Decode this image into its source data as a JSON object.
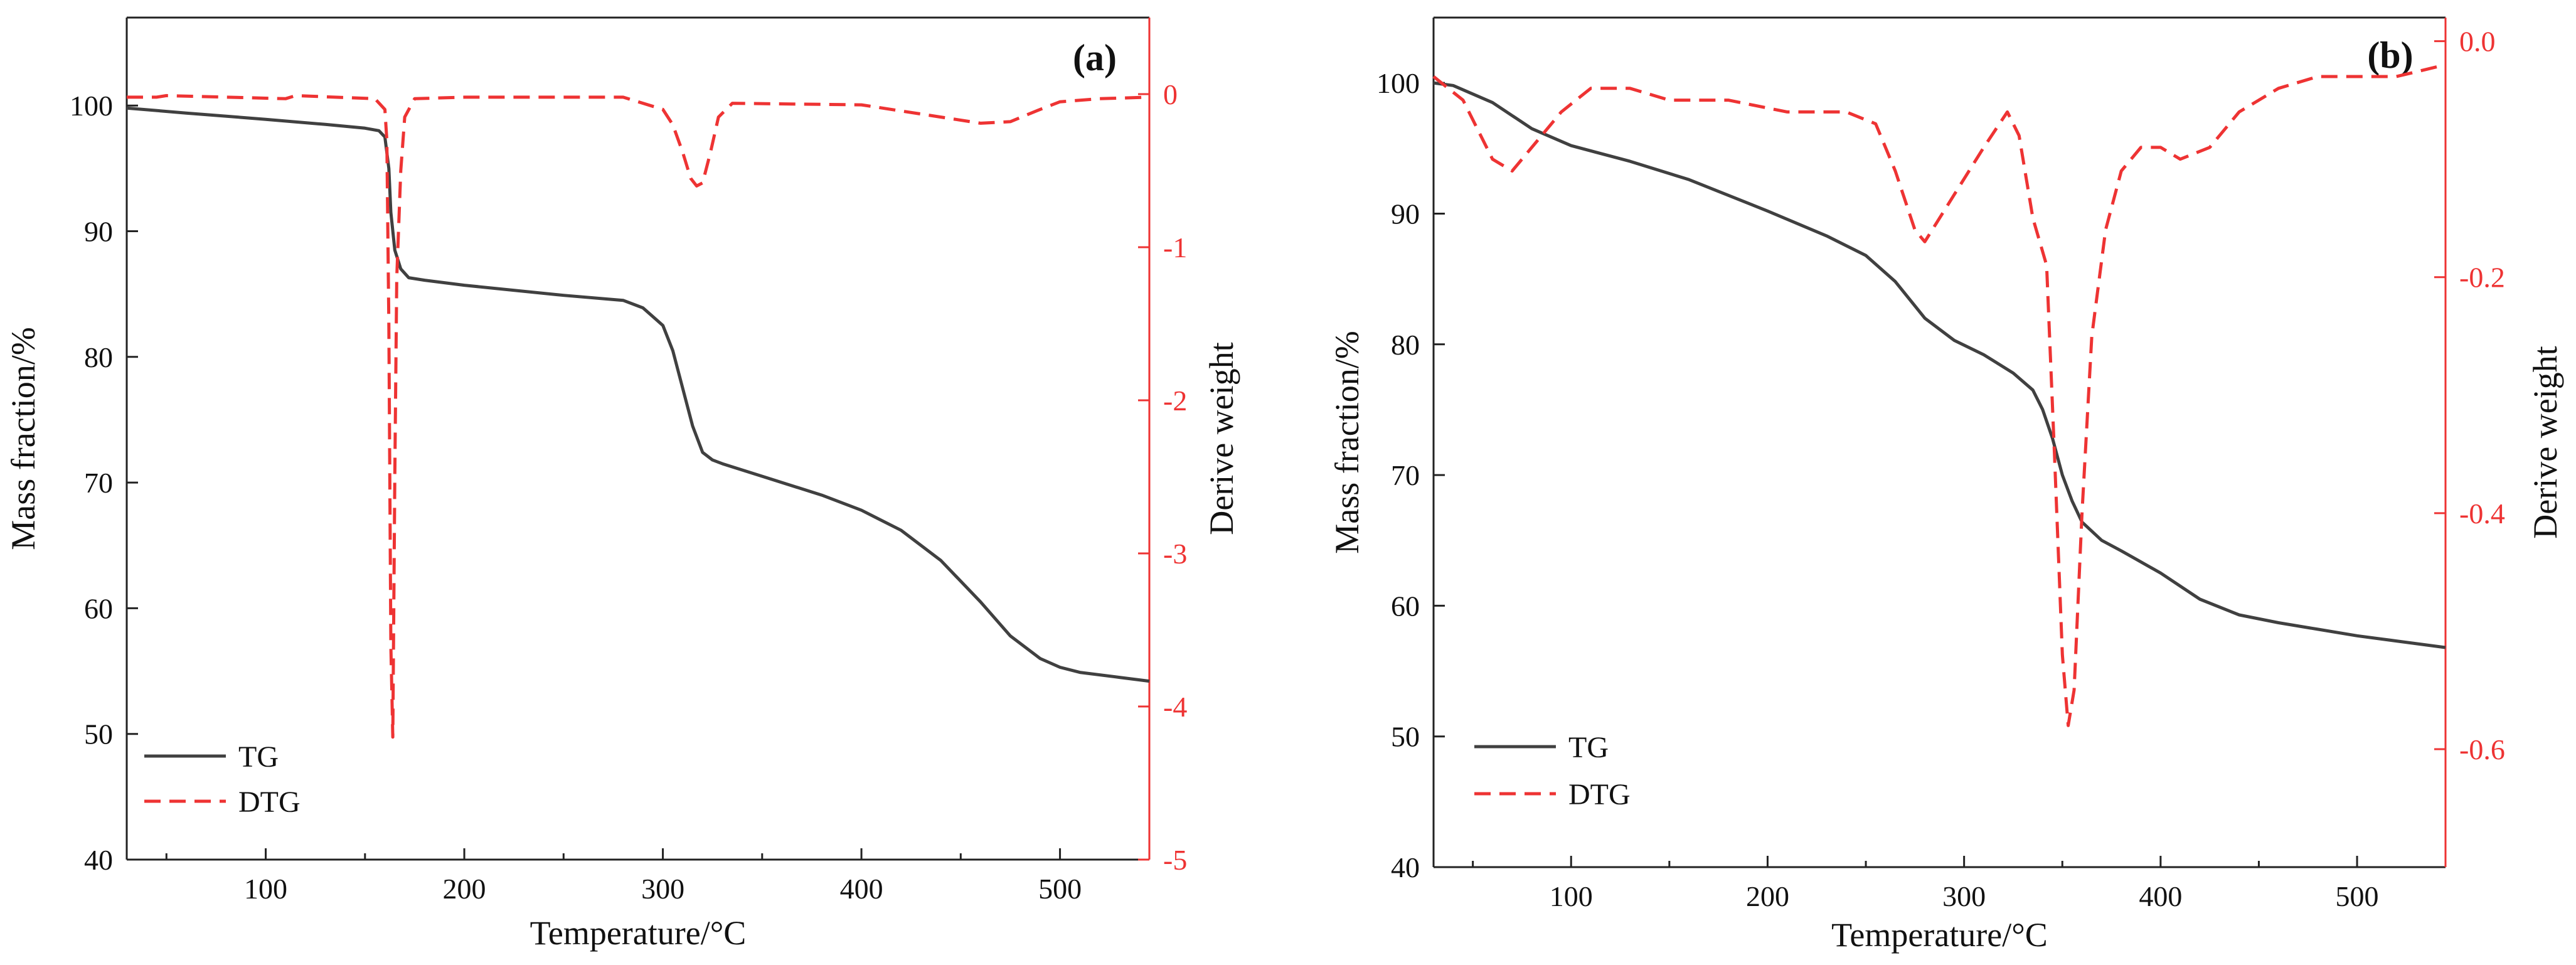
{
  "colors": {
    "tg": "#404040",
    "dtg": "#ee3333",
    "axis": "#222222"
  },
  "chart_data": [
    {
      "type": "line",
      "panel_label": "(a)",
      "xlabel": "Temperature/°C",
      "ylabel_left": "Mass fraction/%",
      "ylabel_right": "Derive weight",
      "xlim": [
        30,
        545
      ],
      "ylim_left": [
        40,
        107
      ],
      "ylim_right": [
        -5,
        0.5
      ],
      "xticks": [
        100,
        200,
        300,
        400,
        500
      ],
      "xtick_labels": [
        "100",
        "200",
        "300",
        "400",
        "500"
      ],
      "yticks_left": [
        40,
        50,
        60,
        70,
        80,
        90,
        100
      ],
      "ytick_labels_left": [
        "40",
        "50",
        "60",
        "70",
        "80",
        "90",
        "100"
      ],
      "yticks_right": [
        -5,
        -4,
        -3,
        -2,
        -1,
        0
      ],
      "ytick_labels_right": [
        "-5",
        "-4",
        "-3",
        "-2",
        "-1",
        "0"
      ],
      "legend": {
        "placement": "bottom-left",
        "entries": [
          "TG",
          "DTG"
        ]
      },
      "series": [
        {
          "name": "TG",
          "axis": "left",
          "style": "solid",
          "x": [
            30,
            60,
            100,
            130,
            150,
            157,
            160,
            162,
            163,
            165,
            168,
            172,
            180,
            200,
            250,
            280,
            290,
            300,
            305,
            310,
            315,
            320,
            325,
            330,
            340,
            360,
            380,
            400,
            420,
            440,
            460,
            475,
            490,
            500,
            510,
            530,
            545
          ],
          "y": [
            99.8,
            99.4,
            98.9,
            98.5,
            98.2,
            98,
            97.5,
            95,
            91.5,
            88.5,
            87,
            86.3,
            86.1,
            85.7,
            84.9,
            84.5,
            83.9,
            82.5,
            80.5,
            77.5,
            74.5,
            72.4,
            71.8,
            71.5,
            71,
            70,
            69,
            67.8,
            66.2,
            63.8,
            60.5,
            57.8,
            56,
            55.3,
            54.9,
            54.5,
            54.2
          ]
        },
        {
          "name": "DTG",
          "axis": "right",
          "style": "dashed",
          "x": [
            30,
            45,
            50,
            110,
            115,
            155,
            160,
            161,
            162,
            163,
            164,
            165,
            166,
            168,
            170,
            175,
            200,
            250,
            280,
            300,
            305,
            310,
            314,
            317,
            320,
            324,
            328,
            335,
            400,
            440,
            460,
            475,
            490,
            500,
            520,
            545
          ],
          "y": [
            -0.02,
            -0.02,
            -0.01,
            -0.03,
            -0.01,
            -0.03,
            -0.1,
            -0.3,
            -1.5,
            -3.6,
            -4.2,
            -2.5,
            -1.2,
            -0.5,
            -0.15,
            -0.03,
            -0.02,
            -0.02,
            -0.02,
            -0.1,
            -0.2,
            -0.38,
            -0.55,
            -0.6,
            -0.58,
            -0.38,
            -0.15,
            -0.06,
            -0.07,
            -0.15,
            -0.19,
            -0.18,
            -0.1,
            -0.05,
            -0.03,
            -0.02
          ]
        }
      ]
    },
    {
      "type": "line",
      "panel_label": "(b)",
      "xlabel": "Temperature/°C",
      "ylabel_left": "Mass fraction/%",
      "ylabel_right": "Derive weight",
      "xlim": [
        30,
        545
      ],
      "ylim_left": [
        40,
        105
      ],
      "ylim_right": [
        -0.7,
        0.02
      ],
      "xticks": [
        100,
        200,
        300,
        400,
        500
      ],
      "xtick_labels": [
        "100",
        "200",
        "300",
        "400",
        "500"
      ],
      "yticks_left": [
        40,
        50,
        60,
        70,
        80,
        90,
        100
      ],
      "ytick_labels_left": [
        "40",
        "50",
        "60",
        "70",
        "80",
        "90",
        "100"
      ],
      "yticks_right": [
        -0.6,
        -0.4,
        -0.2,
        0.0
      ],
      "ytick_labels_right": [
        "-0.6",
        "-0.4",
        "-0.2",
        "0.0"
      ],
      "legend": {
        "placement": "bottom-left",
        "entries": [
          "TG",
          "DTG"
        ]
      },
      "series": [
        {
          "name": "TG",
          "axis": "left",
          "style": "solid",
          "x": [
            30,
            40,
            60,
            80,
            100,
            130,
            160,
            200,
            230,
            250,
            265,
            280,
            295,
            310,
            325,
            335,
            340,
            345,
            350,
            355,
            360,
            370,
            380,
            400,
            420,
            440,
            460,
            480,
            500,
            520,
            545
          ],
          "y": [
            100,
            99.8,
            98.5,
            96.5,
            95.2,
            94,
            92.6,
            90.2,
            88.3,
            86.8,
            84.8,
            82,
            80.3,
            79.2,
            77.8,
            76.5,
            75,
            72.8,
            70,
            68,
            66.4,
            65,
            64.2,
            62.5,
            60.5,
            59.3,
            58.7,
            58.2,
            57.7,
            57.3,
            56.8
          ]
        },
        {
          "name": "DTG",
          "axis": "right",
          "style": "dashed",
          "x": [
            30,
            45,
            60,
            70,
            80,
            95,
            110,
            130,
            150,
            180,
            210,
            240,
            255,
            265,
            275,
            280,
            295,
            310,
            322,
            328,
            335,
            342,
            346,
            350,
            353,
            356,
            360,
            365,
            372,
            380,
            390,
            400,
            410,
            425,
            440,
            460,
            480,
            500,
            520,
            545
          ],
          "y": [
            -0.03,
            -0.05,
            -0.1,
            -0.11,
            -0.09,
            -0.06,
            -0.04,
            -0.04,
            -0.05,
            -0.05,
            -0.06,
            -0.06,
            -0.07,
            -0.11,
            -0.16,
            -0.17,
            -0.13,
            -0.09,
            -0.06,
            -0.08,
            -0.15,
            -0.19,
            -0.35,
            -0.52,
            -0.58,
            -0.55,
            -0.4,
            -0.25,
            -0.16,
            -0.11,
            -0.09,
            -0.09,
            -0.1,
            -0.09,
            -0.06,
            -0.04,
            -0.03,
            -0.03,
            -0.03,
            -0.02
          ]
        }
      ]
    }
  ]
}
